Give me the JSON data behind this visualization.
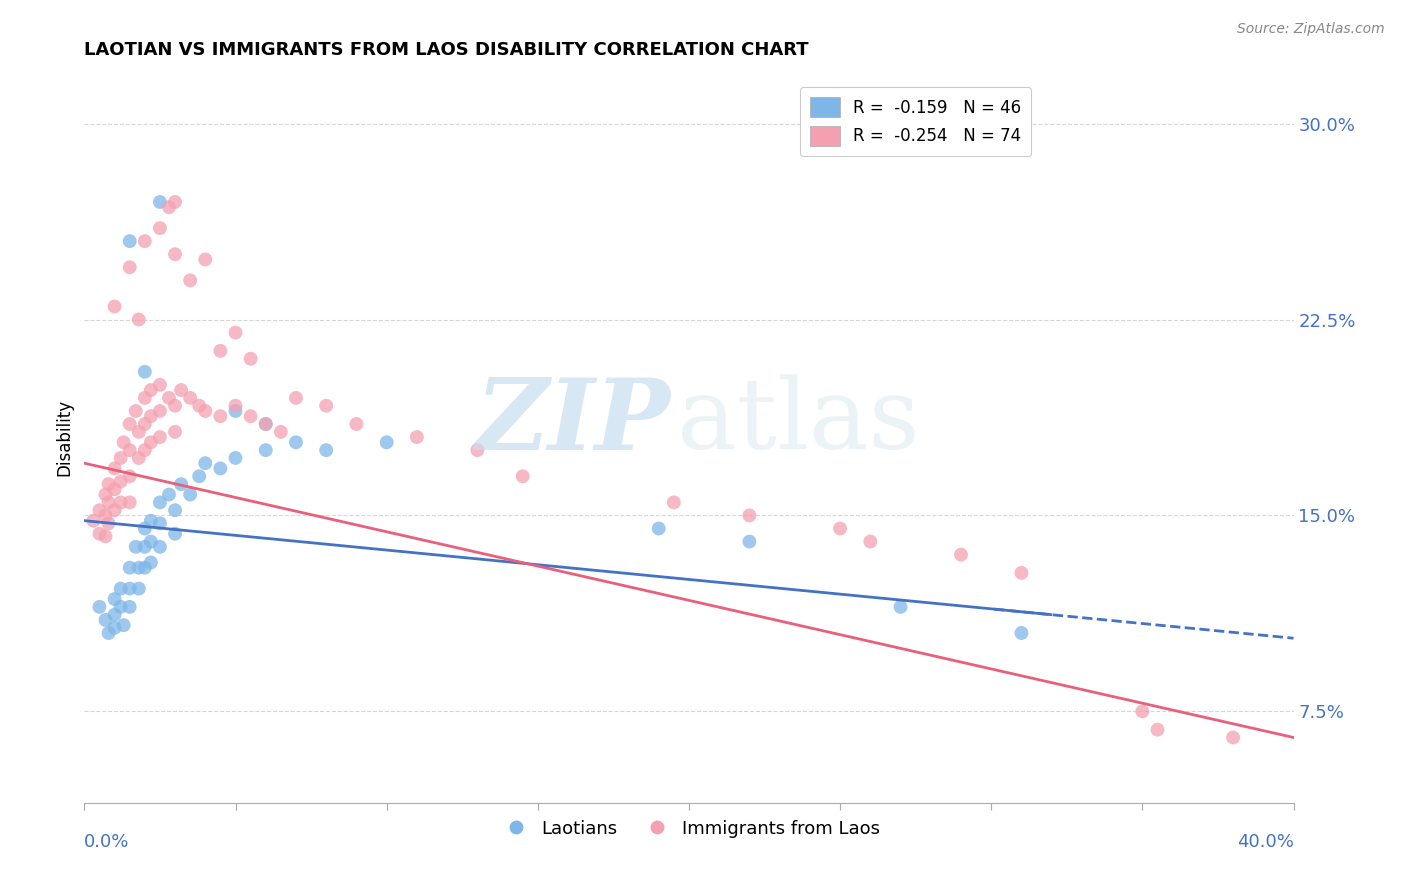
{
  "title": "LAOTIAN VS IMMIGRANTS FROM LAOS DISABILITY CORRELATION CHART",
  "source": "Source: ZipAtlas.com",
  "ylabel": "Disability",
  "ytick_values": [
    0.075,
    0.15,
    0.225,
    0.3
  ],
  "xlim": [
    0.0,
    0.4
  ],
  "ylim": [
    0.04,
    0.32
  ],
  "color_blue": "#7EB6E8",
  "color_pink": "#F4A0B0",
  "line_blue": "#4472C4",
  "line_pink": "#E8607A",
  "blue_points": [
    [
      0.005,
      0.115
    ],
    [
      0.007,
      0.11
    ],
    [
      0.008,
      0.105
    ],
    [
      0.01,
      0.118
    ],
    [
      0.01,
      0.112
    ],
    [
      0.01,
      0.107
    ],
    [
      0.012,
      0.122
    ],
    [
      0.012,
      0.115
    ],
    [
      0.013,
      0.108
    ],
    [
      0.015,
      0.13
    ],
    [
      0.015,
      0.122
    ],
    [
      0.015,
      0.115
    ],
    [
      0.017,
      0.138
    ],
    [
      0.018,
      0.13
    ],
    [
      0.018,
      0.122
    ],
    [
      0.02,
      0.145
    ],
    [
      0.02,
      0.138
    ],
    [
      0.02,
      0.13
    ],
    [
      0.022,
      0.148
    ],
    [
      0.022,
      0.14
    ],
    [
      0.022,
      0.132
    ],
    [
      0.025,
      0.155
    ],
    [
      0.025,
      0.147
    ],
    [
      0.025,
      0.138
    ],
    [
      0.028,
      0.158
    ],
    [
      0.03,
      0.152
    ],
    [
      0.03,
      0.143
    ],
    [
      0.032,
      0.162
    ],
    [
      0.035,
      0.158
    ],
    [
      0.038,
      0.165
    ],
    [
      0.04,
      0.17
    ],
    [
      0.045,
      0.168
    ],
    [
      0.05,
      0.172
    ],
    [
      0.06,
      0.175
    ],
    [
      0.07,
      0.178
    ],
    [
      0.02,
      0.205
    ],
    [
      0.015,
      0.255
    ],
    [
      0.025,
      0.27
    ],
    [
      0.05,
      0.19
    ],
    [
      0.06,
      0.185
    ],
    [
      0.08,
      0.175
    ],
    [
      0.1,
      0.178
    ],
    [
      0.19,
      0.145
    ],
    [
      0.22,
      0.14
    ],
    [
      0.27,
      0.115
    ],
    [
      0.31,
      0.105
    ]
  ],
  "pink_points": [
    [
      0.003,
      0.148
    ],
    [
      0.005,
      0.152
    ],
    [
      0.005,
      0.143
    ],
    [
      0.007,
      0.158
    ],
    [
      0.007,
      0.15
    ],
    [
      0.007,
      0.142
    ],
    [
      0.008,
      0.162
    ],
    [
      0.008,
      0.155
    ],
    [
      0.008,
      0.147
    ],
    [
      0.01,
      0.168
    ],
    [
      0.01,
      0.16
    ],
    [
      0.01,
      0.152
    ],
    [
      0.012,
      0.172
    ],
    [
      0.012,
      0.163
    ],
    [
      0.012,
      0.155
    ],
    [
      0.013,
      0.178
    ],
    [
      0.015,
      0.185
    ],
    [
      0.015,
      0.175
    ],
    [
      0.015,
      0.165
    ],
    [
      0.015,
      0.155
    ],
    [
      0.017,
      0.19
    ],
    [
      0.018,
      0.182
    ],
    [
      0.018,
      0.172
    ],
    [
      0.02,
      0.195
    ],
    [
      0.02,
      0.185
    ],
    [
      0.02,
      0.175
    ],
    [
      0.022,
      0.198
    ],
    [
      0.022,
      0.188
    ],
    [
      0.022,
      0.178
    ],
    [
      0.025,
      0.2
    ],
    [
      0.025,
      0.19
    ],
    [
      0.025,
      0.18
    ],
    [
      0.028,
      0.195
    ],
    [
      0.03,
      0.192
    ],
    [
      0.03,
      0.182
    ],
    [
      0.032,
      0.198
    ],
    [
      0.035,
      0.195
    ],
    [
      0.038,
      0.192
    ],
    [
      0.04,
      0.19
    ],
    [
      0.045,
      0.188
    ],
    [
      0.05,
      0.192
    ],
    [
      0.055,
      0.188
    ],
    [
      0.06,
      0.185
    ],
    [
      0.065,
      0.182
    ],
    [
      0.01,
      0.23
    ],
    [
      0.015,
      0.245
    ],
    [
      0.02,
      0.255
    ],
    [
      0.025,
      0.26
    ],
    [
      0.03,
      0.25
    ],
    [
      0.035,
      0.24
    ],
    [
      0.04,
      0.248
    ],
    [
      0.05,
      0.22
    ],
    [
      0.018,
      0.225
    ],
    [
      0.045,
      0.213
    ],
    [
      0.03,
      0.27
    ],
    [
      0.028,
      0.268
    ],
    [
      0.055,
      0.21
    ],
    [
      0.07,
      0.195
    ],
    [
      0.08,
      0.192
    ],
    [
      0.09,
      0.185
    ],
    [
      0.11,
      0.18
    ],
    [
      0.13,
      0.175
    ],
    [
      0.145,
      0.165
    ],
    [
      0.195,
      0.155
    ],
    [
      0.22,
      0.15
    ],
    [
      0.25,
      0.145
    ],
    [
      0.26,
      0.14
    ],
    [
      0.29,
      0.135
    ],
    [
      0.31,
      0.128
    ],
    [
      0.355,
      0.068
    ],
    [
      0.35,
      0.075
    ],
    [
      0.38,
      0.065
    ]
  ]
}
